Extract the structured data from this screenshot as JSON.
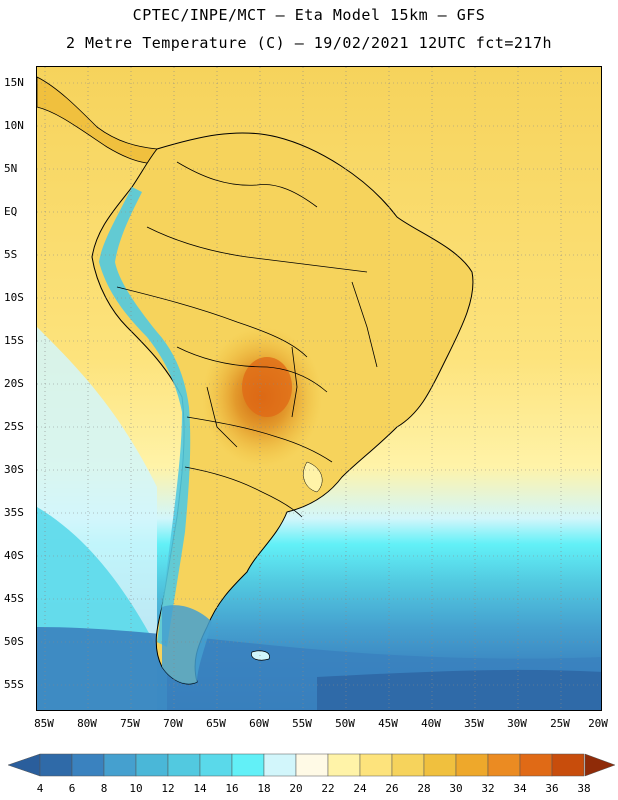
{
  "header": {
    "line1": "CPTEC/INPE/MCT –  Eta Model 15km – GFS",
    "line2": "2 Metre Temperature (C) – 19/02/2021 12UTC fct=217h"
  },
  "map": {
    "lat_labels": [
      "15N",
      "10N",
      "5N",
      "EQ",
      "5S",
      "10S",
      "15S",
      "20S",
      "25S",
      "30S",
      "35S",
      "40S",
      "45S",
      "50S",
      "55S"
    ],
    "lon_labels": [
      "85W",
      "80W",
      "75W",
      "70W",
      "65W",
      "60W",
      "55W",
      "50W",
      "45W",
      "40W",
      "35W",
      "30W",
      "25W",
      "20W"
    ],
    "lon_range": [
      -86,
      -20
    ],
    "lat_range": [
      -57.5,
      17.5
    ]
  },
  "colorbar": {
    "ticks": [
      "4",
      "6",
      "8",
      "10",
      "12",
      "14",
      "16",
      "18",
      "20",
      "22",
      "24",
      "26",
      "28",
      "30",
      "32",
      "34",
      "36",
      "38"
    ],
    "colors": [
      "#2f6aa8",
      "#3a82bf",
      "#45a0cf",
      "#4ab7d8",
      "#52c9e0",
      "#5ad9ea",
      "#62f0f7",
      "#d2f6fb",
      "#fffae6",
      "#fff3a8",
      "#fde37c",
      "#f6d35c",
      "#f0c03e",
      "#eea82b",
      "#eb8b22",
      "#e06a16",
      "#c84d0c",
      "#a9380a"
    ],
    "low_color": "#2a5e9c",
    "high_color": "#8f2b08"
  }
}
